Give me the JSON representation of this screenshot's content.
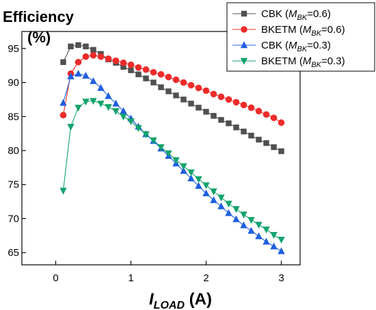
{
  "chart_data": {
    "type": "line",
    "ylabel_line1": "Efficiency",
    "ylabel_line2": "(%)",
    "xlabel": {
      "main": "I",
      "sub": "LOAD",
      "suffix": " (A)"
    },
    "xlim": [
      -0.45,
      3.25
    ],
    "ylim": [
      63.2,
      97.5
    ],
    "xticks": [
      0,
      1,
      2,
      3
    ],
    "xtick_labels": [
      "0",
      "1",
      "2",
      "3"
    ],
    "yticks": [
      65,
      70,
      75,
      80,
      85,
      90,
      95
    ],
    "ytick_labels": [
      "65",
      "70",
      "75",
      "80",
      "85",
      "90",
      "95"
    ],
    "legend_position": "top-right",
    "series": [
      {
        "name": "CBK (M_BK=0.6)",
        "label_prefix": "CBK (",
        "label_var": "M",
        "label_sub": "BK",
        "label_suffix": "=0.6)",
        "color": "#505050",
        "marker": "square",
        "x": [
          0.1,
          0.2,
          0.3,
          0.4,
          0.5,
          0.6,
          0.7,
          0.8,
          0.9,
          1.0,
          1.1,
          1.2,
          1.3,
          1.4,
          1.5,
          1.6,
          1.7,
          1.8,
          1.9,
          2.0,
          2.1,
          2.2,
          2.3,
          2.4,
          2.5,
          2.6,
          2.7,
          2.8,
          2.9,
          3.0
        ],
        "y": [
          93.0,
          95.3,
          95.5,
          95.3,
          94.8,
          94.2,
          93.4,
          92.9,
          92.3,
          91.8,
          91.2,
          90.6,
          90.0,
          89.3,
          88.7,
          88.1,
          87.5,
          86.9,
          86.3,
          85.7,
          85.1,
          84.5,
          84.0,
          83.4,
          82.8,
          82.2,
          81.6,
          81.1,
          80.5,
          79.9
        ]
      },
      {
        "name": "BKETM (M_BK=0.6)",
        "label_prefix": "BKETM (",
        "label_var": "M",
        "label_sub": "BK",
        "label_suffix": "=0.6)",
        "color": "#ee2b2b",
        "marker": "circle",
        "x": [
          0.1,
          0.2,
          0.3,
          0.4,
          0.5,
          0.6,
          0.7,
          0.8,
          0.9,
          1.0,
          1.1,
          1.2,
          1.3,
          1.4,
          1.5,
          1.6,
          1.7,
          1.8,
          1.9,
          2.0,
          2.1,
          2.2,
          2.3,
          2.4,
          2.5,
          2.6,
          2.7,
          2.8,
          2.9,
          3.0
        ],
        "y": [
          85.2,
          91.3,
          93.0,
          93.8,
          94.0,
          93.8,
          93.5,
          93.2,
          92.9,
          92.6,
          92.2,
          91.9,
          91.5,
          91.2,
          90.8,
          90.4,
          90.0,
          89.6,
          89.2,
          88.8,
          88.3,
          87.9,
          87.5,
          87.1,
          86.7,
          86.3,
          85.8,
          85.3,
          84.8,
          84.1
        ]
      },
      {
        "name": "CBK (M_BK=0.3)",
        "label_prefix": "CBK (",
        "label_var": "M",
        "label_sub": "BK",
        "label_suffix": "=0.3)",
        "color": "#1f5fe0",
        "marker": "triangle-up",
        "x": [
          0.1,
          0.2,
          0.3,
          0.4,
          0.5,
          0.6,
          0.7,
          0.8,
          0.9,
          1.0,
          1.1,
          1.2,
          1.3,
          1.4,
          1.5,
          1.6,
          1.7,
          1.8,
          1.9,
          2.0,
          2.1,
          2.2,
          2.3,
          2.4,
          2.5,
          2.6,
          2.7,
          2.8,
          2.9,
          3.0
        ],
        "y": [
          87.0,
          90.9,
          91.3,
          91.0,
          90.2,
          89.2,
          88.0,
          86.9,
          85.8,
          84.7,
          83.5,
          82.4,
          81.4,
          80.3,
          79.2,
          78.1,
          77.0,
          75.9,
          74.8,
          73.7,
          72.7,
          71.8,
          70.8,
          69.9,
          69.0,
          68.2,
          67.4,
          66.6,
          65.9,
          65.2
        ]
      },
      {
        "name": "BKETM (M_BK=0.3)",
        "label_prefix": "BKETM (",
        "label_var": "M",
        "label_sub": "BK",
        "label_suffix": "=0.3)",
        "color": "#12a36b",
        "marker": "triangle-down",
        "x": [
          0.1,
          0.2,
          0.3,
          0.4,
          0.5,
          0.6,
          0.7,
          0.8,
          0.9,
          1.0,
          1.1,
          1.2,
          1.3,
          1.4,
          1.5,
          1.6,
          1.7,
          1.8,
          1.9,
          2.0,
          2.1,
          2.2,
          2.3,
          2.4,
          2.5,
          2.6,
          2.7,
          2.8,
          2.9,
          3.0
        ],
        "y": [
          74.1,
          83.5,
          86.3,
          87.2,
          87.3,
          86.9,
          86.4,
          85.8,
          85.0,
          84.3,
          83.3,
          82.4,
          81.5,
          80.5,
          79.6,
          78.6,
          77.7,
          76.8,
          75.8,
          74.9,
          74.0,
          73.1,
          72.2,
          71.4,
          70.6,
          69.8,
          69.1,
          68.4,
          67.6,
          66.9
        ]
      }
    ]
  }
}
